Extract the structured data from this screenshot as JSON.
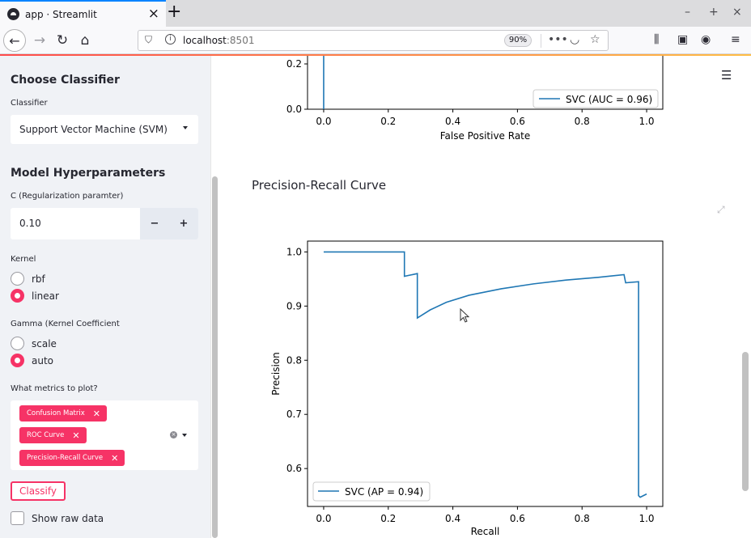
{
  "browser": {
    "tab_title": "app · Streamlit",
    "tab_close": "×",
    "new_tab": "+",
    "url_host": "localhost",
    "url_port": ":8501",
    "zoom": "90%",
    "icons": [
      "back-icon",
      "forward-icon",
      "reload-icon",
      "home-icon",
      "shield-icon",
      "info-icon",
      "more-icon",
      "pocket-icon",
      "bookmark-star-icon",
      "library-icon",
      "sidebar-icon",
      "account-icon",
      "menu-icon"
    ]
  },
  "sidebar": {
    "classifier_heading": "Choose Classifier",
    "classifier_label": "Classifier",
    "classifier_value": "Support Vector Machine (SVM)",
    "hyper_heading": "Model Hyperparameters",
    "c_label": "C (Regularization paramter)",
    "c_value": "0.10",
    "minus": "−",
    "plus": "+",
    "kernel_label": "Kernel",
    "kernel_options": [
      "rbf",
      "linear"
    ],
    "kernel_selected": "linear",
    "gamma_label": "Gamma (Kernel Coefficient",
    "gamma_options": [
      "scale",
      "auto"
    ],
    "gamma_selected": "auto",
    "metrics_label": "What metrics to plot?",
    "metrics_selected": [
      "Confusion Matrix",
      "ROC Curve",
      "Precision-Recall Curve"
    ],
    "chip_remove": "✕",
    "classify_button": "Classify",
    "raw_data_label": "Show raw data"
  },
  "main": {
    "menu_icon": "☰",
    "pr_title": "Precision-Recall Curve",
    "expand_icon": "⤢"
  },
  "chart_data": [
    {
      "type": "line",
      "partial": true,
      "xlabel": "False Positive Rate",
      "ylabel": "",
      "xlim": [
        -0.05,
        1.05
      ],
      "x_ticks": [
        "0.0",
        "0.2",
        "0.4",
        "0.6",
        "0.8",
        "1.0"
      ],
      "y_ticks": [
        "0.0",
        "0.2"
      ],
      "legend": "SVC (AUC = 0.96)",
      "legend_position": "lower right",
      "series": [
        {
          "name": "SVC (AUC = 0.96)",
          "x": [
            0.0,
            0.0
          ],
          "y": [
            0.0,
            0.95
          ]
        }
      ],
      "color": "#1f77b4"
    },
    {
      "type": "line",
      "xlabel": "Recall",
      "ylabel": "Precision",
      "xlim": [
        -0.05,
        1.05
      ],
      "ylim": [
        0.53,
        1.02
      ],
      "x_ticks": [
        "0.0",
        "0.2",
        "0.4",
        "0.6",
        "0.8",
        "1.0"
      ],
      "y_ticks": [
        "0.6",
        "0.7",
        "0.8",
        "0.9",
        "1.0"
      ],
      "legend": "SVC (AP = 0.94)",
      "legend_position": "lower left",
      "series": [
        {
          "name": "SVC (AP = 0.94)",
          "x": [
            0.0,
            0.0,
            0.25,
            0.25,
            0.29,
            0.29,
            0.33,
            0.38,
            0.45,
            0.55,
            0.65,
            0.75,
            0.85,
            0.93,
            0.935,
            0.975,
            0.975,
            0.98,
            1.0
          ],
          "y": [
            1.0,
            1.0,
            1.0,
            0.955,
            0.96,
            0.878,
            0.893,
            0.907,
            0.92,
            0.932,
            0.941,
            0.948,
            0.953,
            0.958,
            0.943,
            0.945,
            0.55,
            0.547,
            0.553
          ]
        }
      ],
      "color": "#1f77b4"
    }
  ]
}
